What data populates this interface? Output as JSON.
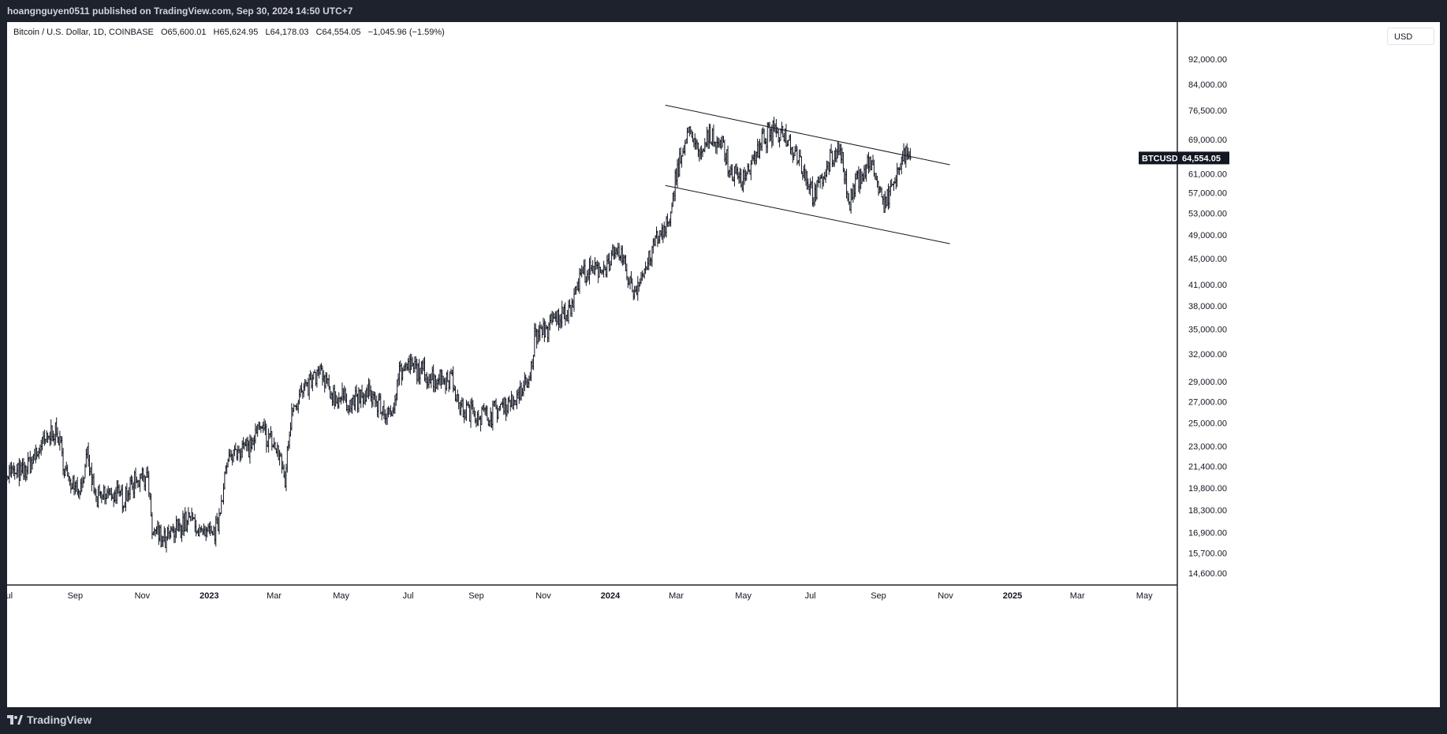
{
  "header": {
    "published": "hoangnguyen0511 published on TradingView.com, Sep 30, 2024 14:50 UTC+7"
  },
  "legend": {
    "symbol": "Bitcoin / U.S. Dollar, 1D, COINBASE",
    "open": "O65,600.01",
    "high": "H65,624.95",
    "low": "L64,178.03",
    "close": "C64,554.05",
    "change": "−1,045.96 (−1.59%)"
  },
  "currency": "USD",
  "price_tag": {
    "ticker": "BTCUSD",
    "price": "64,554.05"
  },
  "footer": {
    "brand": "TradingView"
  },
  "colors": {
    "candle": "#131722",
    "background": "#ffffff",
    "frame": "#1e222d",
    "tag": "#131722"
  },
  "chart_data": {
    "type": "ohlc",
    "scale": "log",
    "ylim": [
      14000,
      105000
    ],
    "y_ticks": [
      14600,
      15700,
      16900,
      18300,
      19800,
      21400,
      23000,
      25000,
      27000,
      29000,
      32000,
      35000,
      38000,
      41000,
      45000,
      49000,
      53000,
      57000,
      61000,
      69000,
      76500,
      84000,
      92000
    ],
    "y_tick_labels": [
      "14,600.00",
      "15,700.00",
      "16,900.00",
      "18,300.00",
      "19,800.00",
      "21,400.00",
      "23,000.00",
      "25,000.00",
      "27,000.00",
      "29,000.00",
      "32,000.00",
      "35,000.00",
      "38,000.00",
      "41,000.00",
      "45,000.00",
      "49,000.00",
      "53,000.00",
      "57,000.00",
      "61,000.00",
      "69,000.00",
      "76,500.00",
      "84,000.00",
      "92,000.00"
    ],
    "x_axis": [
      "Jul",
      "Sep",
      "Nov",
      "2023",
      "Mar",
      "May",
      "Jul",
      "Sep",
      "Nov",
      "2024",
      "Mar",
      "May",
      "Jul",
      "Sep",
      "Nov",
      "2025",
      "Mar",
      "May"
    ],
    "x_axis_dates": [
      "2022-07-01",
      "2022-09-01",
      "2022-11-01",
      "2023-01-01",
      "2023-03-01",
      "2023-05-01",
      "2023-07-01",
      "2023-09-01",
      "2023-11-01",
      "2024-01-01",
      "2024-03-01",
      "2024-05-01",
      "2024-07-01",
      "2024-09-01",
      "2024-11-01",
      "2025-01-01",
      "2025-03-01",
      "2025-05-01"
    ],
    "bold_labels": [
      "2023",
      "2024",
      "2025"
    ],
    "x_range": [
      "2022-07-01",
      "2025-05-31"
    ],
    "last_price": 64554.05,
    "channel": [
      {
        "name": "upper",
        "from": [
          "2024-02-20",
          78000
        ],
        "to": [
          "2024-11-05",
          63000
        ]
      },
      {
        "name": "lower",
        "from": [
          "2024-02-20",
          58500
        ],
        "to": [
          "2024-11-05",
          47500
        ]
      }
    ],
    "series": [
      {
        "values": [
          [
            "2022-07-01",
            21000
          ],
          [
            "2022-07-15",
            20800
          ],
          [
            "2022-08-01",
            23000
          ],
          [
            "2022-08-14",
            24500
          ],
          [
            "2022-08-26",
            20300
          ],
          [
            "2022-09-06",
            19800
          ],
          [
            "2022-09-12",
            22000
          ],
          [
            "2022-09-20",
            19000
          ],
          [
            "2022-10-01",
            19400
          ],
          [
            "2022-10-15",
            19200
          ],
          [
            "2022-10-28",
            20600
          ],
          [
            "2022-11-05",
            21000
          ],
          [
            "2022-11-10",
            17000
          ],
          [
            "2022-11-20",
            16300
          ],
          [
            "2022-12-01",
            17000
          ],
          [
            "2022-12-14",
            17800
          ],
          [
            "2022-12-28",
            16600
          ],
          [
            "2023-01-08",
            17100
          ],
          [
            "2023-01-15",
            20800
          ],
          [
            "2023-01-25",
            23000
          ],
          [
            "2023-02-08",
            23000
          ],
          [
            "2023-02-16",
            24500
          ],
          [
            "2023-02-26",
            23500
          ],
          [
            "2023-03-05",
            22400
          ],
          [
            "2023-03-11",
            20500
          ],
          [
            "2023-03-17",
            26500
          ],
          [
            "2023-03-28",
            28000
          ],
          [
            "2023-04-11",
            30000
          ],
          [
            "2023-04-24",
            27500
          ],
          [
            "2023-05-10",
            27000
          ],
          [
            "2023-05-28",
            27700
          ],
          [
            "2023-06-15",
            25300
          ],
          [
            "2023-06-22",
            30000
          ],
          [
            "2023-07-06",
            30500
          ],
          [
            "2023-07-24",
            29300
          ],
          [
            "2023-08-10",
            29500
          ],
          [
            "2023-08-17",
            26300
          ],
          [
            "2023-09-01",
            25900
          ],
          [
            "2023-09-12",
            25800
          ],
          [
            "2023-09-28",
            26800
          ],
          [
            "2023-10-10",
            27500
          ],
          [
            "2023-10-20",
            29500
          ],
          [
            "2023-10-24",
            34000
          ],
          [
            "2023-11-08",
            35500
          ],
          [
            "2023-11-25",
            37700
          ],
          [
            "2023-12-05",
            42500
          ],
          [
            "2023-12-20",
            43000
          ],
          [
            "2024-01-10",
            46000
          ],
          [
            "2024-01-22",
            39800
          ],
          [
            "2024-02-01",
            43000
          ],
          [
            "2024-02-10",
            47500
          ],
          [
            "2024-02-25",
            51500
          ],
          [
            "2024-03-01",
            62000
          ],
          [
            "2024-03-14",
            71500
          ],
          [
            "2024-03-22",
            64500
          ],
          [
            "2024-04-01",
            70000
          ],
          [
            "2024-04-12",
            68000
          ],
          [
            "2024-04-18",
            61500
          ],
          [
            "2024-04-30",
            60000
          ],
          [
            "2024-05-15",
            66000
          ],
          [
            "2024-05-21",
            70000
          ],
          [
            "2024-06-06",
            71000
          ],
          [
            "2024-06-18",
            66000
          ],
          [
            "2024-07-05",
            56000
          ],
          [
            "2024-07-15",
            62000
          ],
          [
            "2024-07-28",
            68000
          ],
          [
            "2024-08-05",
            54000
          ],
          [
            "2024-08-12",
            59500
          ],
          [
            "2024-08-25",
            64000
          ],
          [
            "2024-09-06",
            54000
          ],
          [
            "2024-09-18",
            61000
          ],
          [
            "2024-09-27",
            66000
          ],
          [
            "2024-09-30",
            64554
          ]
        ]
      }
    ]
  }
}
